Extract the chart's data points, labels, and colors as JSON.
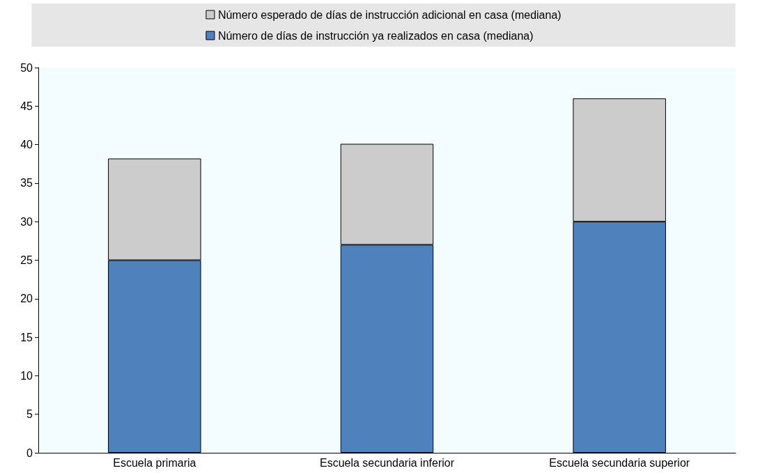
{
  "chart_data": {
    "type": "bar",
    "stacked": true,
    "categories": [
      "Escuela primaria",
      "Escuela secundaria inferior",
      "Escuela secundaria superior"
    ],
    "series": [
      {
        "name": "Número de días de instrucción ya realizados en casa (mediana)",
        "color": "#4f81bd",
        "values": [
          25,
          27,
          30
        ]
      },
      {
        "name": "Número esperado de días de instrucción adicional en casa (mediana)",
        "color": "#cccccc",
        "values": [
          13.2,
          13.1,
          16
        ]
      }
    ],
    "ylim": [
      0,
      50
    ],
    "yticks": [
      0,
      5,
      10,
      15,
      20,
      25,
      30,
      35,
      40,
      45,
      50
    ],
    "grid": false,
    "legend": "top"
  }
}
